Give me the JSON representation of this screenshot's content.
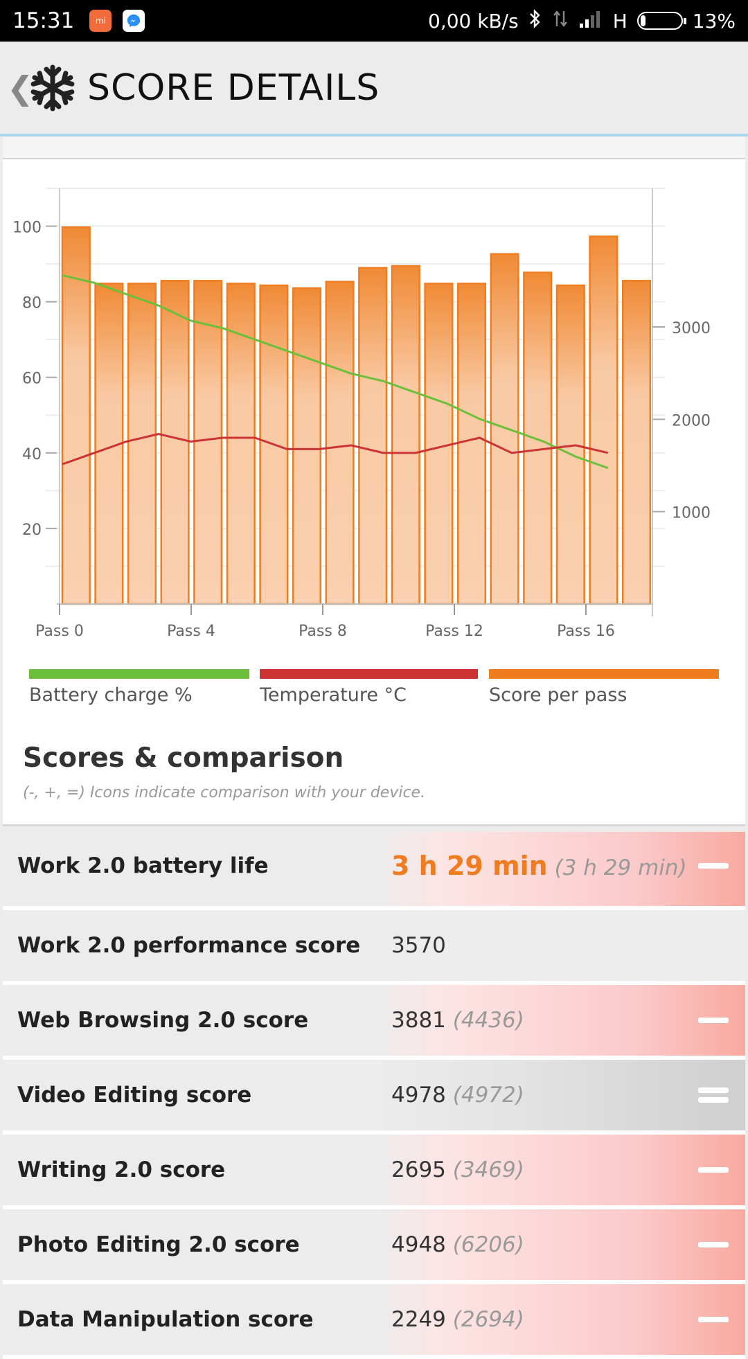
{
  "status_bar": {
    "time": "15:31",
    "net_speed": "0,00 kB/s",
    "network_type": "H",
    "battery": "13%",
    "battery_level": 0.13,
    "icons": [
      "mi-app-icon",
      "messenger-icon",
      "bluetooth-icon",
      "data-transfer-icon",
      "signal-icon"
    ]
  },
  "header": {
    "back_glyph": "❮",
    "title": "SCORE DETAILS",
    "icon": "snowflake-icon"
  },
  "colors": {
    "battery": "#6bbf3a",
    "temperature": "#cc3333",
    "score": "#f07c20",
    "highlight": "#f07c20"
  },
  "chart_data": {
    "type": "bar",
    "title": "",
    "categories": [
      "Pass 0",
      "Pass 1",
      "Pass 2",
      "Pass 3",
      "Pass 4",
      "Pass 5",
      "Pass 6",
      "Pass 7",
      "Pass 8",
      "Pass 9",
      "Pass 10",
      "Pass 11",
      "Pass 12",
      "Pass 13",
      "Pass 14",
      "Pass 15",
      "Pass 16",
      "Pass 17"
    ],
    "x_ticks": [
      "Pass 0",
      "Pass 4",
      "Pass 8",
      "Pass 12",
      "Pass 16"
    ],
    "left_axis": {
      "ticks": [
        "20",
        "40",
        "60",
        "80",
        "100"
      ],
      "ylim": [
        0,
        110
      ]
    },
    "right_axis": {
      "ticks": [
        "1000",
        "2000",
        "3000"
      ],
      "ylim": [
        0,
        4500
      ]
    },
    "series": [
      {
        "name": "Score per pass",
        "type": "bar",
        "axis": "right",
        "values": [
          4080,
          3470,
          3470,
          3500,
          3500,
          3470,
          3450,
          3420,
          3490,
          3640,
          3660,
          3470,
          3470,
          3790,
          3590,
          3450,
          3980,
          3500
        ]
      },
      {
        "name": "Battery charge %",
        "type": "line",
        "axis": "left",
        "values": [
          87,
          85,
          82,
          79,
          75,
          73,
          70,
          67,
          64,
          61,
          59,
          56,
          53,
          49,
          46,
          43,
          39,
          36
        ]
      },
      {
        "name": "Temperature °C",
        "type": "line",
        "axis": "left",
        "values": [
          37,
          40,
          43,
          45,
          43,
          44,
          44,
          41,
          41,
          42,
          40,
          40,
          42,
          44,
          40,
          41,
          42,
          40
        ]
      }
    ],
    "legend": [
      {
        "label": "Battery charge %",
        "color": "#6bbf3a"
      },
      {
        "label": "Temperature °C",
        "color": "#cc3333"
      },
      {
        "label": "Score per pass",
        "color": "#f07c20"
      }
    ],
    "grid": true,
    "legend_position": "bottom"
  },
  "scores": {
    "title": "Scores & comparison",
    "subtitle": "(-, +, =) Icons indicate comparison with your device.",
    "rows": [
      {
        "label": "Work 2.0 battery life",
        "value": "3 h 29 min",
        "compare": "(3 h 29 min)",
        "symbol": "minus",
        "style": "red",
        "big": true
      },
      {
        "label": "Work 2.0 performance score",
        "value": "3570",
        "compare": "",
        "symbol": "",
        "style": "none",
        "big": false
      },
      {
        "label": "Web Browsing 2.0 score",
        "value": "3881",
        "compare": "(4436)",
        "symbol": "minus",
        "style": "red",
        "big": false
      },
      {
        "label": "Video Editing score",
        "value": "4978",
        "compare": "(4972)",
        "symbol": "equal",
        "style": "grey",
        "big": false
      },
      {
        "label": "Writing 2.0 score",
        "value": "2695",
        "compare": "(3469)",
        "symbol": "minus",
        "style": "red",
        "big": false
      },
      {
        "label": "Photo Editing 2.0 score",
        "value": "4948",
        "compare": "(6206)",
        "symbol": "minus",
        "style": "red",
        "big": false
      },
      {
        "label": "Data Manipulation score",
        "value": "2249",
        "compare": "(2694)",
        "symbol": "minus",
        "style": "red",
        "big": false
      }
    ]
  }
}
